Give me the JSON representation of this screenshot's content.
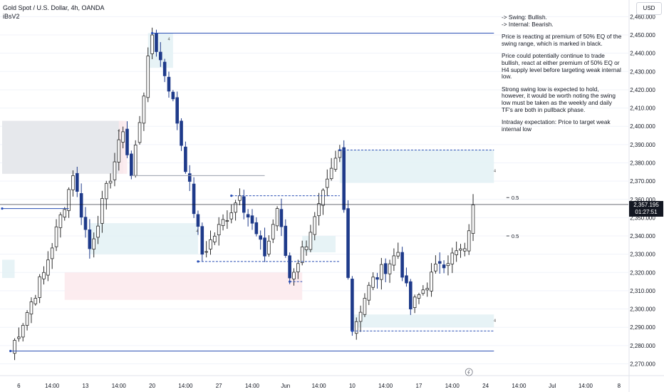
{
  "header": {
    "symbol": "Gold Spot / U.S. Dollar, 4h, OANDA",
    "indicator": "iBsV2"
  },
  "currency_button": "USD",
  "current_price": {
    "value": "2,357.195",
    "countdown": "01:27:51",
    "level": 2357.195
  },
  "notes": [
    "-> Swing:  Bullish.\n-> Internal:  Bearish.",
    "Price is reacting at premium of 50% EQ of the swing range, which is marked in black.",
    "Price could potentially continue to trade bullish, react at either premium of 50% EQ or H4 supply level before targeting weak internal low.",
    "Strong swing low is expected to hold, however, it would be worth noting the swing low must be taken as the weekly and daily TF's are both in pullback phase.",
    "Intraday expectation: Price to target weak internal low"
  ],
  "markers": {
    "zone_label": "4",
    "eq_label": "0.5"
  },
  "colors": {
    "up": "#2b2b2b",
    "down": "#1e3a8a",
    "structure_line": "#2a4fb5",
    "demand_zone": "#e3f1f4",
    "supply_zone": "#fbe9ec",
    "grey_zone": "#e5e7eb",
    "grid": "#f0f3fa"
  },
  "chart_data": {
    "type": "candlestick",
    "symbol": "Gold Spot / U.S. Dollar",
    "timeframe": "4h",
    "y_axis": {
      "ticks": [
        2270,
        2280,
        2290,
        2300,
        2310,
        2320,
        2330,
        2340,
        2350,
        2360,
        2370,
        2380,
        2390,
        2400,
        2410,
        2420,
        2430,
        2440,
        2450,
        2460
      ],
      "tick_labels": [
        "2,270.000",
        "2,280.000",
        "2,290.000",
        "2,300.000",
        "2,310.000",
        "2,320.000",
        "2,330.000",
        "2,340.000",
        "2,350.000",
        "2,360.000",
        "2,370.000",
        "2,380.000",
        "2,390.000",
        "2,400.000",
        "2,410.000",
        "2,420.000",
        "2,430.000",
        "2,440.000",
        "2,450.000",
        "2,460.000"
      ],
      "ylim": [
        2265.5,
        2462.5
      ]
    },
    "x_axis": {
      "labels": [
        "6",
        "14:00",
        "13",
        "14:00",
        "20",
        "14:00",
        "27",
        "14:00",
        "Jun",
        "14:00",
        "10",
        "14:00",
        "17",
        "14:00",
        "24",
        "14:00",
        "Jul",
        "14:00",
        "8"
      ],
      "bar_index": [
        4,
        12,
        20,
        28,
        36,
        44,
        52,
        60,
        68,
        76,
        84,
        92,
        100,
        108,
        116,
        124,
        132,
        140,
        148
      ]
    },
    "key_points": [
      {
        "bar": 2,
        "price": 2277
      },
      {
        "bar": 10,
        "price": 2320
      },
      {
        "bar": 17,
        "price": 2373
      },
      {
        "bar": 21,
        "price": 2333
      },
      {
        "bar": 29,
        "price": 2397
      },
      {
        "bar": 31,
        "price": 2373
      },
      {
        "bar": 36,
        "price": 2450
      },
      {
        "bar": 41,
        "price": 2415
      },
      {
        "bar": 48,
        "price": 2330
      },
      {
        "bar": 57,
        "price": 2362
      },
      {
        "bar": 63,
        "price": 2329
      },
      {
        "bar": 66,
        "price": 2355
      },
      {
        "bar": 69,
        "price": 2317
      },
      {
        "bar": 74,
        "price": 2342
      },
      {
        "bar": 81,
        "price": 2387
      },
      {
        "bar": 84,
        "price": 2288
      },
      {
        "bar": 88,
        "price": 2313
      },
      {
        "bar": 95,
        "price": 2331
      },
      {
        "bar": 98,
        "price": 2300
      },
      {
        "bar": 105,
        "price": 2325
      },
      {
        "bar": 111,
        "price": 2333
      },
      {
        "bar": 113,
        "price": 2357
      }
    ],
    "zones": [
      {
        "kind": "grey",
        "from_bar": 0,
        "to_bar": 29,
        "top": 2403,
        "bottom": 2374
      },
      {
        "kind": "supply",
        "from_bar": 28,
        "to_bar": 30,
        "top": 2403,
        "bottom": 2374
      },
      {
        "kind": "demand",
        "from_bar": 35,
        "to_bar": 41,
        "top": 2451,
        "bottom": 2432
      },
      {
        "kind": "demand",
        "from_bar": 21,
        "to_bar": 47,
        "top": 2347,
        "bottom": 2330
      },
      {
        "kind": "demand",
        "from_bar": 0,
        "to_bar": 3,
        "top": 2327,
        "bottom": 2317
      },
      {
        "kind": "supply",
        "from_bar": 15,
        "to_bar": 72,
        "top": 2320,
        "bottom": 2305
      },
      {
        "kind": "demand",
        "from_bar": 72,
        "to_bar": 80,
        "top": 2340,
        "bottom": 2331
      },
      {
        "kind": "demand",
        "from_bar": 81,
        "to_bar": 118,
        "top": 2387,
        "bottom": 2369
      },
      {
        "kind": "demand",
        "from_bar": 84,
        "to_bar": 118,
        "top": 2297,
        "bottom": 2290
      }
    ],
    "lines": [
      {
        "kind": "solid",
        "from_bar": 36,
        "to_bar": 118,
        "price": 2451
      },
      {
        "kind": "solid",
        "from_bar": 2,
        "to_bar": 118,
        "price": 2277
      },
      {
        "kind": "solid",
        "from_bar": 0,
        "to_bar": 16,
        "price": 2355
      },
      {
        "kind": "thin",
        "from_bar": 31,
        "to_bar": 63,
        "price": 2373
      },
      {
        "kind": "dashed",
        "from_bar": 55,
        "to_bar": 81,
        "price": 2362
      },
      {
        "kind": "dashed",
        "from_bar": 47,
        "to_bar": 81,
        "price": 2326
      },
      {
        "kind": "dashed",
        "from_bar": 69,
        "to_bar": 72,
        "price": 2315
      },
      {
        "kind": "dashed",
        "from_bar": 81,
        "to_bar": 118,
        "price": 2387
      },
      {
        "kind": "dashed",
        "from_bar": 84,
        "to_bar": 118,
        "price": 2288
      }
    ],
    "eq_levels": [
      {
        "bar": 121,
        "price": 2361,
        "label": "0.5"
      },
      {
        "bar": 121,
        "price": 2340,
        "label": "0.5"
      }
    ],
    "current_price": 2357.195
  }
}
